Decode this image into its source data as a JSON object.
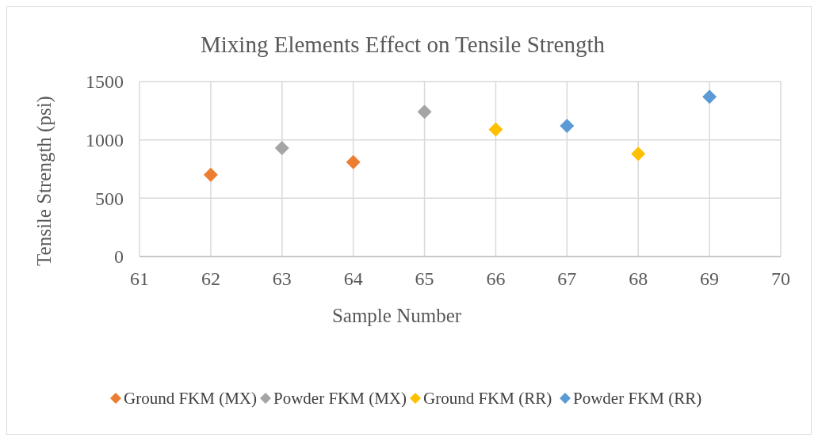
{
  "chart_data": {
    "type": "scatter",
    "title": "Mixing Elements Effect on Tensile Strength",
    "xlabel": "Sample Number",
    "ylabel": "Tensile Strength (psi)",
    "xlim": [
      61,
      70
    ],
    "xticks": [
      61,
      62,
      63,
      64,
      65,
      66,
      67,
      68,
      69,
      70
    ],
    "ylim": [
      0,
      1500
    ],
    "yticks": [
      0,
      500,
      1000,
      1500
    ],
    "grid": true,
    "legend": "bottom",
    "marker": "diamond",
    "series": [
      {
        "name": "Ground FKM (MX)",
        "color": "#ed7d31",
        "x": [
          62,
          64
        ],
        "values": [
          700,
          810
        ]
      },
      {
        "name": "Powder FKM (MX)",
        "color": "#a5a5a5",
        "x": [
          63,
          65
        ],
        "values": [
          930,
          1240
        ]
      },
      {
        "name": "Ground FKM (RR)",
        "color": "#ffc000",
        "x": [
          66,
          68
        ],
        "values": [
          1090,
          880
        ]
      },
      {
        "name": "Powder FKM (RR)",
        "color": "#5b9bd5",
        "x": [
          67,
          69
        ],
        "values": [
          1120,
          1370
        ]
      }
    ]
  }
}
